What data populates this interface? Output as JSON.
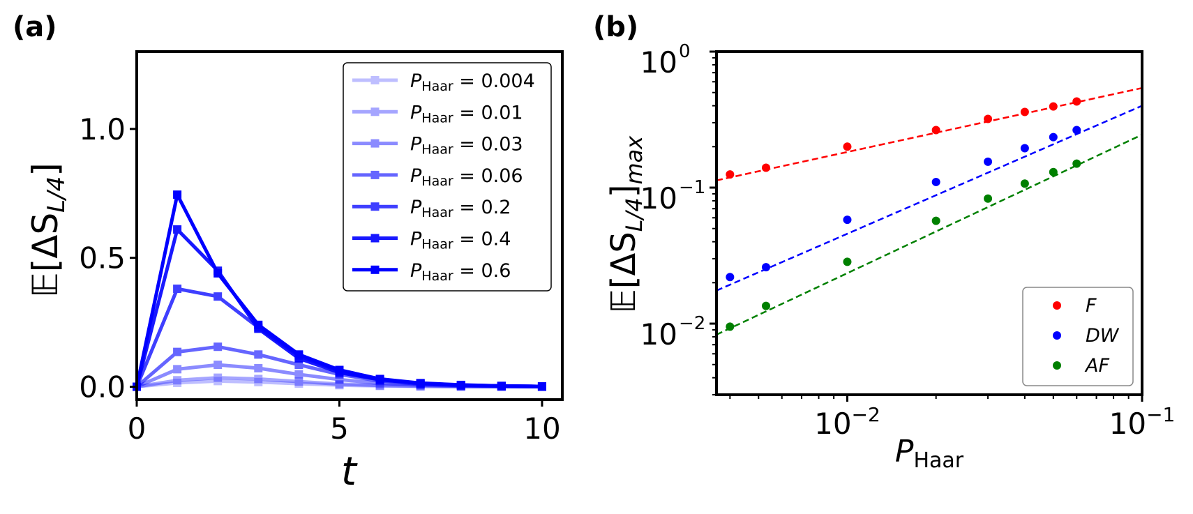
{
  "panel_a_label": "(a)",
  "panel_b_label": "(b)",
  "chart_data": [
    {
      "type": "line",
      "title": "",
      "xlabel": "t",
      "ylabel_main": "𝔼[ΔS",
      "ylabel_sub": "L/4",
      "ylabel_close": "]",
      "xlim": [
        0,
        10.5
      ],
      "ylim": [
        -0.05,
        1.3
      ],
      "xticks": [
        0,
        5,
        10
      ],
      "xtick_labels": [
        "0",
        "5",
        "10"
      ],
      "yticks": [
        0.0,
        0.5,
        1.0
      ],
      "ytick_labels": [
        "0.0",
        "0.5",
        "1.0"
      ],
      "legend_position": "top-right",
      "legend_symbol": "P",
      "legend_subscript": "Haar",
      "x": [
        0,
        1,
        2,
        3,
        4,
        5,
        6,
        7,
        8,
        9,
        10
      ],
      "series": [
        {
          "name": " = 0.004",
          "opacity": 0.25,
          "values": [
            0.0,
            0.015,
            0.022,
            0.018,
            0.012,
            0.006,
            0.003,
            0.001,
            0.0,
            0.0,
            0.0
          ]
        },
        {
          "name": " = 0.01",
          "opacity": 0.35,
          "values": [
            0.0,
            0.025,
            0.035,
            0.03,
            0.02,
            0.01,
            0.005,
            0.002,
            0.001,
            0.0,
            0.0
          ]
        },
        {
          "name": " = 0.03",
          "opacity": 0.45,
          "values": [
            0.0,
            0.068,
            0.085,
            0.072,
            0.048,
            0.028,
            0.013,
            0.006,
            0.002,
            0.001,
            0.0
          ]
        },
        {
          "name": " = 0.06",
          "opacity": 0.6,
          "values": [
            0.0,
            0.135,
            0.155,
            0.125,
            0.085,
            0.048,
            0.022,
            0.01,
            0.004,
            0.002,
            0.0
          ]
        },
        {
          "name": " = 0.2",
          "opacity": 0.75,
          "values": [
            0.0,
            0.38,
            0.35,
            0.23,
            0.12,
            0.06,
            0.028,
            0.013,
            0.006,
            0.003,
            0.001
          ]
        },
        {
          "name": " = 0.4",
          "opacity": 0.9,
          "values": [
            0.0,
            0.61,
            0.45,
            0.225,
            0.11,
            0.055,
            0.027,
            0.013,
            0.006,
            0.003,
            0.001
          ]
        },
        {
          "name": " = 0.6",
          "opacity": 1.0,
          "values": [
            0.0,
            0.745,
            0.44,
            0.24,
            0.125,
            0.065,
            0.03,
            0.014,
            0.007,
            0.003,
            0.001
          ]
        }
      ]
    },
    {
      "type": "scatter",
      "title": "",
      "xlabel_main": "P",
      "xlabel_sub": "Haar",
      "ylabel_main": "𝔼[ΔS",
      "ylabel_sub": "L/4",
      "ylabel_close": "]",
      "ylabel_sub2": "max",
      "xscale": "log",
      "yscale": "log",
      "xlim": [
        0.0036,
        0.1
      ],
      "ylim": [
        0.003,
        1.0
      ],
      "xtick_labels": [
        {
          "value": 0.01,
          "base": "10",
          "exp": "−2"
        },
        {
          "value": 0.1,
          "base": "10",
          "exp": "−1"
        }
      ],
      "ytick_labels": [
        {
          "value": 1.0,
          "base": "10",
          "exp": "0"
        },
        {
          "value": 0.1,
          "base": "10",
          "exp": "−1"
        },
        {
          "value": 0.01,
          "base": "10",
          "exp": "−2"
        }
      ],
      "legend_position": "bottom-right",
      "series": [
        {
          "name": "F",
          "color": "#ff0000",
          "x": [
            0.004,
            0.0053,
            0.01,
            0.02,
            0.03,
            0.04,
            0.05,
            0.06
          ],
          "y": [
            0.125,
            0.14,
            0.2,
            0.265,
            0.32,
            0.36,
            0.395,
            0.43
          ],
          "fit": {
            "x": [
              0.0036,
              0.1
            ],
            "y": [
              0.113,
              0.54
            ]
          }
        },
        {
          "name": "DW",
          "color": "#0000ff",
          "x": [
            0.004,
            0.0053,
            0.01,
            0.02,
            0.03,
            0.04,
            0.05,
            0.06
          ],
          "y": [
            0.022,
            0.026,
            0.058,
            0.11,
            0.155,
            0.195,
            0.235,
            0.265
          ],
          "fit": {
            "x": [
              0.0036,
              0.1
            ],
            "y": [
              0.0175,
              0.4
            ]
          }
        },
        {
          "name": "AF",
          "color": "#008000",
          "x": [
            0.004,
            0.0053,
            0.01,
            0.02,
            0.03,
            0.04,
            0.05,
            0.06
          ],
          "y": [
            0.0095,
            0.0135,
            0.0285,
            0.057,
            0.083,
            0.107,
            0.13,
            0.15
          ],
          "fit": {
            "x": [
              0.0036,
              0.1
            ],
            "y": [
              0.0083,
              0.245
            ]
          }
        }
      ]
    }
  ]
}
